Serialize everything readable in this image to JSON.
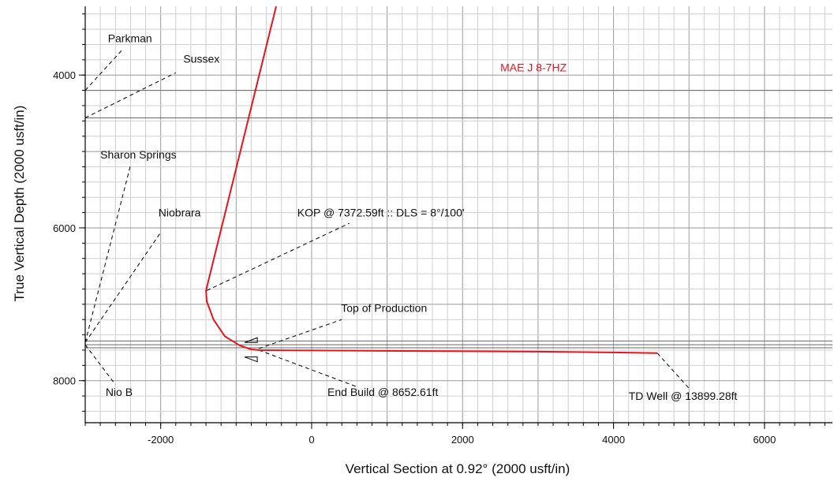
{
  "chart_data": {
    "type": "line",
    "well_name": "MAE J 8-7HZ",
    "xlabel": "Vertical Section at 0.92° (2000 usft/in)",
    "ylabel": "True Vertical Depth (2000 usft/in)",
    "xlim": [
      -3000,
      6900
    ],
    "ylim": [
      8550,
      3100
    ],
    "y_inverted": true,
    "grid": true,
    "x_ticks": [
      -2000,
      0,
      2000,
      4000,
      6000
    ],
    "y_ticks": [
      4000,
      6000,
      8000
    ],
    "x_tick_labels": [
      "-2000",
      "0",
      "2000",
      "4000",
      "6000"
    ],
    "y_tick_labels": [
      "4000",
      "6000",
      "8000"
    ],
    "series": [
      {
        "name": "MAE J 8-7HZ",
        "color": "#e8141c",
        "x": [
          -470,
          -1400,
          -1390,
          -1300,
          -1150,
          -950,
          -800,
          -700,
          0,
          1000,
          2000,
          3000,
          4000,
          4580
        ],
        "y": [
          3100,
          6820,
          6960,
          7200,
          7420,
          7540,
          7590,
          7600,
          7605,
          7610,
          7615,
          7620,
          7630,
          7640
        ]
      }
    ],
    "formations": [
      {
        "label": "Parkman",
        "tvd": 4200,
        "label_x": -2700,
        "label_y": 3570,
        "leader_x": -2500,
        "leader_y": 3660
      },
      {
        "label": "Sussex",
        "tvd": 4560,
        "label_x": -1700,
        "label_y": 3840,
        "leader_x": -1800,
        "leader_y": 3970
      },
      {
        "label": "Sharon Springs",
        "tvd": 7500,
        "label_x": -2800,
        "label_y": 5090,
        "leader_x": -2400,
        "leader_y": 5180
      },
      {
        "label": "Niobrara",
        "tvd": 7500,
        "label_x": -2030,
        "label_y": 5850,
        "leader_x": -2000,
        "leader_y": 6060
      },
      {
        "label": "Nio B",
        "tvd": 7530,
        "label_x": -2730,
        "label_y": 8200,
        "leader_x": -2600,
        "leader_y": 8050
      }
    ],
    "formation_lines_tvd": [
      4200,
      4560,
      7480,
      7530,
      7570
    ],
    "annotations": [
      {
        "label": "KOP @ 7372.59ft :: DLS = 8°/100'",
        "label_x": -190,
        "label_y": 5850,
        "point_x": -1390,
        "point_y": 6820,
        "leader_x": 500,
        "leader_y": 5940
      },
      {
        "label": "Top of Production",
        "label_x": 390,
        "label_y": 7100,
        "point_x": -700,
        "point_y": 7580,
        "leader_x": 400,
        "leader_y": 7200
      },
      {
        "label": "End Build @ 8652.61ft",
        "label_x": 210,
        "label_y": 8200,
        "point_x": -700,
        "point_y": 7600,
        "leader_x": 600,
        "leader_y": 8080
      },
      {
        "label": "TD Well @ 13899.28ft",
        "label_x": 4200,
        "label_y": 8250,
        "point_x": 4580,
        "point_y": 7640,
        "leader_x": 5000,
        "leader_y": 8100
      }
    ],
    "casing_markers": [
      {
        "x": -720,
        "y": 7500
      },
      {
        "x": -720,
        "y": 7690
      }
    ]
  }
}
